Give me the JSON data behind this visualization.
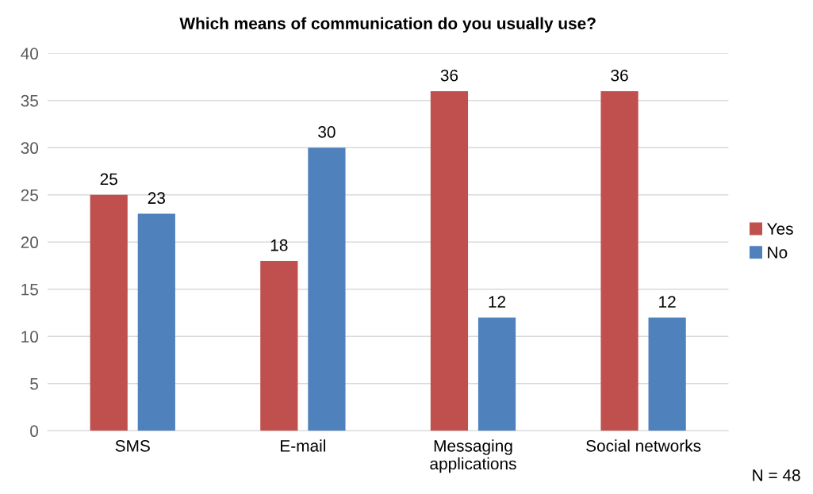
{
  "chart_data": {
    "type": "bar",
    "title": "Which means of communication do you usually use?",
    "categories": [
      "SMS",
      "E-mail",
      "Messaging\napplications",
      "Social networks"
    ],
    "series": [
      {
        "name": "Yes",
        "color": "#c0504d",
        "values": [
          25,
          18,
          36,
          36
        ]
      },
      {
        "name": "No",
        "color": "#4f81bd",
        "values": [
          23,
          30,
          12,
          12
        ]
      }
    ],
    "ylim": [
      0,
      40
    ],
    "yticks": [
      0,
      5,
      10,
      15,
      20,
      25,
      30,
      35,
      40
    ],
    "grid": "y",
    "legend": "right",
    "data_labels": true,
    "annotations": [
      "N = 48"
    ]
  }
}
